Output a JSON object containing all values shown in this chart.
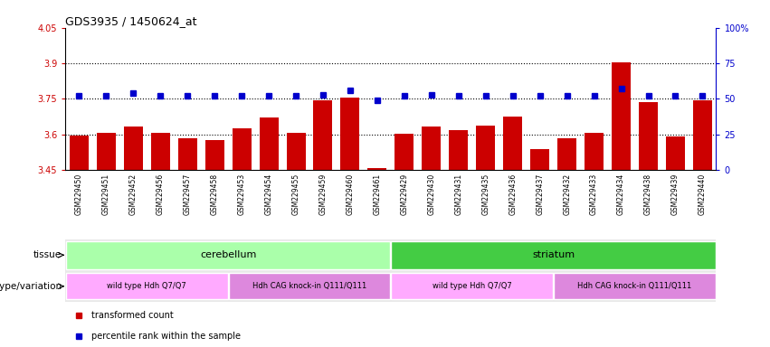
{
  "title": "GDS3935 / 1450624_at",
  "samples": [
    "GSM229450",
    "GSM229451",
    "GSM229452",
    "GSM229456",
    "GSM229457",
    "GSM229458",
    "GSM229453",
    "GSM229454",
    "GSM229455",
    "GSM229459",
    "GSM229460",
    "GSM229461",
    "GSM229429",
    "GSM229430",
    "GSM229431",
    "GSM229435",
    "GSM229436",
    "GSM229437",
    "GSM229432",
    "GSM229433",
    "GSM229434",
    "GSM229438",
    "GSM229439",
    "GSM229440"
  ],
  "bar_values": [
    3.596,
    3.608,
    3.635,
    3.608,
    3.583,
    3.575,
    3.627,
    3.673,
    3.608,
    3.743,
    3.757,
    3.46,
    3.603,
    3.633,
    3.617,
    3.638,
    3.675,
    3.537,
    3.585,
    3.606,
    3.905,
    3.738,
    3.591,
    3.743
  ],
  "percentile_values": [
    52,
    52,
    54,
    52,
    52,
    52,
    52,
    52,
    52,
    53,
    56,
    49,
    52,
    53,
    52,
    52,
    52,
    52,
    52,
    52,
    57,
    52,
    52,
    52
  ],
  "ymin": 3.45,
  "ymax": 4.05,
  "yticks": [
    3.45,
    3.6,
    3.75,
    3.9,
    4.05
  ],
  "ytick_labels": [
    "3.45",
    "3.6",
    "3.75",
    "3.9",
    "4.05"
  ],
  "hlines": [
    3.6,
    3.75,
    3.9
  ],
  "right_yticks": [
    0,
    25,
    50,
    75,
    100
  ],
  "right_ytick_labels": [
    "0",
    "25",
    "50",
    "75",
    "100%"
  ],
  "bar_color": "#cc0000",
  "percentile_color": "#0000cc",
  "tissue_groups": [
    {
      "label": "cerebellum",
      "start": 0,
      "end": 11,
      "color": "#aaffaa"
    },
    {
      "label": "striatum",
      "start": 12,
      "end": 23,
      "color": "#44cc44"
    }
  ],
  "genotype_groups": [
    {
      "label": "wild type Hdh Q7/Q7",
      "start": 0,
      "end": 5,
      "color": "#ffaaff"
    },
    {
      "label": "Hdh CAG knock-in Q111/Q111",
      "start": 6,
      "end": 11,
      "color": "#dd88dd"
    },
    {
      "label": "wild type Hdh Q7/Q7",
      "start": 12,
      "end": 17,
      "color": "#ffaaff"
    },
    {
      "label": "Hdh CAG knock-in Q111/Q111",
      "start": 18,
      "end": 23,
      "color": "#dd88dd"
    }
  ],
  "legend_items": [
    {
      "label": "transformed count",
      "color": "#cc0000"
    },
    {
      "label": "percentile rank within the sample",
      "color": "#0000cc"
    }
  ],
  "tissue_label": "tissue",
  "geno_label": "genotype/variation",
  "bg_color": "#e8e8e8"
}
